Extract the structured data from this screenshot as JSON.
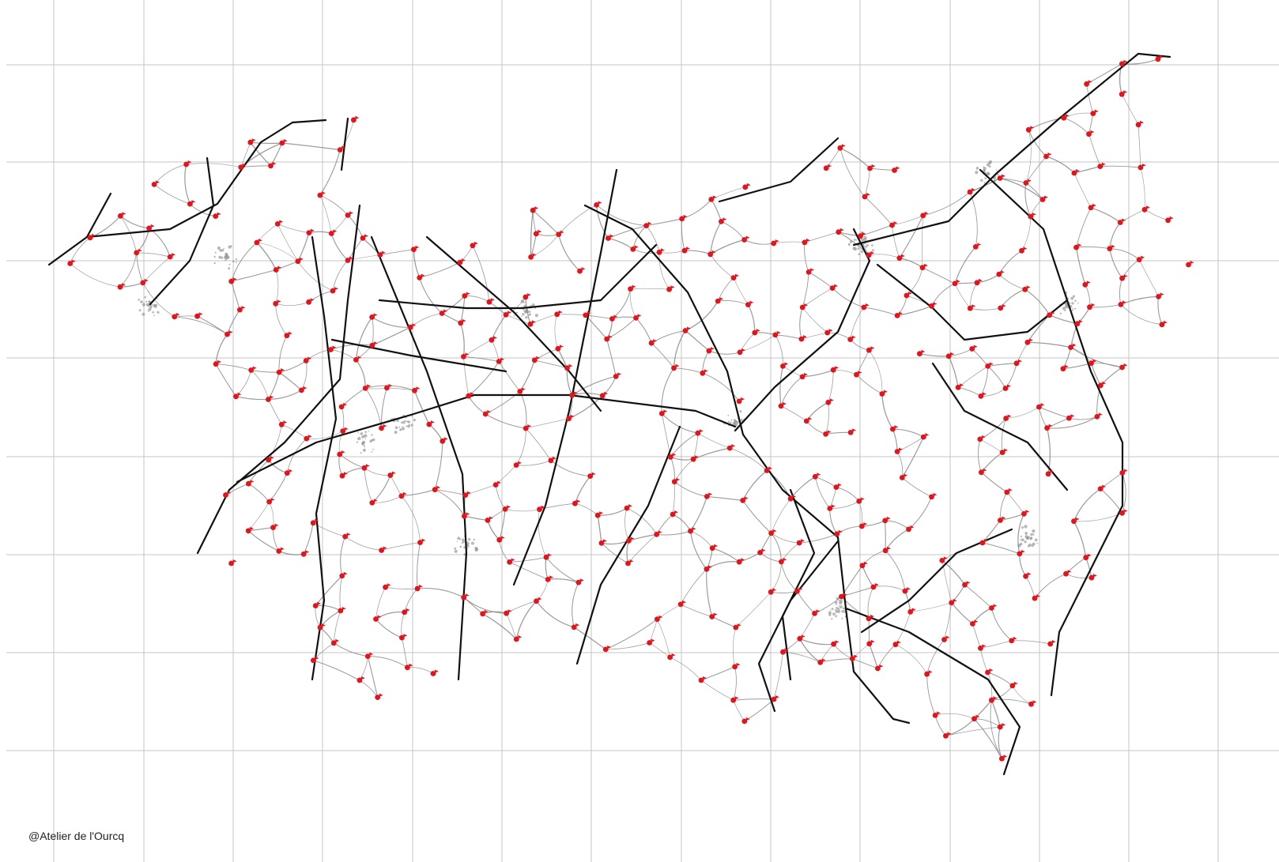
{
  "map": {
    "credit": "@Atelier de l'Ourcq",
    "colors": {
      "background": "#ffffff",
      "grid": "#c4c4c4",
      "major_road": "#111111",
      "minor_road": "#8a8a8a",
      "urban_area": "#9a9a9a",
      "place_marker": "#e3141c"
    },
    "layers": [
      "grid",
      "minor-roads",
      "major-roads",
      "urban-areas",
      "place-markers"
    ],
    "grid": true,
    "marker_symbol": "red-dot-with-flag"
  }
}
